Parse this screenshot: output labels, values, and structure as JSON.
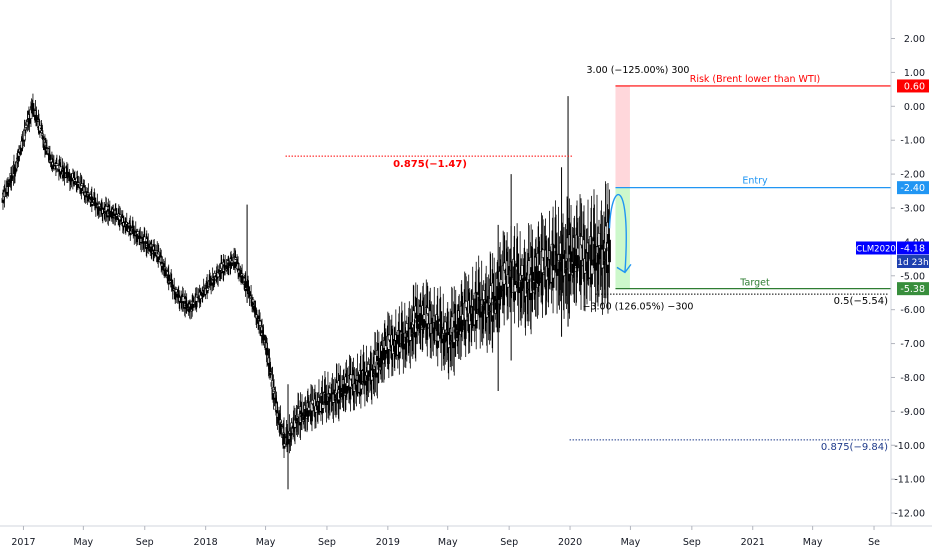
{
  "chart_data": {
    "type": "candlestick",
    "symbol_label": "CLM2020",
    "last_value": "-4.18",
    "countdown": "1d 23h",
    "y_ticks": [
      "2.00",
      "1.00",
      "0.00",
      "-1.00",
      "-2.00",
      "-3.00",
      "-4.00",
      "-5.00",
      "-6.00",
      "-7.00",
      "-8.00",
      "-9.00",
      "-10.00",
      "-11.00",
      "-12.00"
    ],
    "y_tick_values": [
      2,
      1,
      0,
      -1,
      -2,
      -3,
      -4,
      -5,
      -6,
      -7,
      -8,
      -9,
      -10,
      -11,
      -12
    ],
    "ylim": [
      -12.5,
      2.9
    ],
    "x_ticks": [
      "2017",
      "May",
      "Sep",
      "2018",
      "May",
      "Sep",
      "2019",
      "May",
      "Sep",
      "2020",
      "May",
      "Sep",
      "2021",
      "May",
      "Se"
    ],
    "x_tick_dates": [
      "2017-01-01",
      "2017-05-01",
      "2017-09-01",
      "2018-01-01",
      "2018-05-01",
      "2018-09-01",
      "2019-01-01",
      "2019-05-01",
      "2019-09-01",
      "2020-01-01",
      "2020-05-01",
      "2020-09-01",
      "2021-01-01",
      "2021-05-01",
      "2021-09-01"
    ],
    "xlim": [
      "2016-11-15",
      "2021-10-05"
    ],
    "price_anchors": [
      {
        "date": "2016-11-20",
        "value": -2.8
      },
      {
        "date": "2016-12-15",
        "value": -1.8
      },
      {
        "date": "2017-01-10",
        "value": -0.5
      },
      {
        "date": "2017-01-20",
        "value": 0.0
      },
      {
        "date": "2017-02-01",
        "value": -0.6
      },
      {
        "date": "2017-03-01",
        "value": -1.8
      },
      {
        "date": "2017-04-01",
        "value": -2.0
      },
      {
        "date": "2017-05-01",
        "value": -2.5
      },
      {
        "date": "2017-06-01",
        "value": -3.0
      },
      {
        "date": "2017-07-01",
        "value": -3.2
      },
      {
        "date": "2017-08-01",
        "value": -3.6
      },
      {
        "date": "2017-09-01",
        "value": -4.0
      },
      {
        "date": "2017-10-01",
        "value": -4.5
      },
      {
        "date": "2017-11-01",
        "value": -5.5
      },
      {
        "date": "2017-12-01",
        "value": -6.0
      },
      {
        "date": "2018-01-01",
        "value": -5.4
      },
      {
        "date": "2018-02-01",
        "value": -4.8
      },
      {
        "date": "2018-03-01",
        "value": -4.6
      },
      {
        "date": "2018-04-01",
        "value": -5.6
      },
      {
        "date": "2018-05-01",
        "value": -7.0
      },
      {
        "date": "2018-05-20",
        "value": -8.8
      },
      {
        "date": "2018-06-10",
        "value": -10.0
      },
      {
        "date": "2018-07-01",
        "value": -9.2
      },
      {
        "date": "2018-08-01",
        "value": -9.0
      },
      {
        "date": "2018-09-01",
        "value": -8.6
      },
      {
        "date": "2018-10-01",
        "value": -8.4
      },
      {
        "date": "2018-11-01",
        "value": -8.2
      },
      {
        "date": "2018-12-01",
        "value": -7.8
      },
      {
        "date": "2019-01-01",
        "value": -7.2
      },
      {
        "date": "2019-02-01",
        "value": -6.9
      },
      {
        "date": "2019-03-01",
        "value": -6.3
      },
      {
        "date": "2019-04-01",
        "value": -6.5
      },
      {
        "date": "2019-05-01",
        "value": -6.8
      },
      {
        "date": "2019-06-01",
        "value": -6.4
      },
      {
        "date": "2019-07-01",
        "value": -5.9
      },
      {
        "date": "2019-08-01",
        "value": -5.8
      },
      {
        "date": "2019-09-01",
        "value": -5.0
      },
      {
        "date": "2019-10-01",
        "value": -5.2
      },
      {
        "date": "2019-11-01",
        "value": -5.0
      },
      {
        "date": "2019-12-01",
        "value": -4.6
      },
      {
        "date": "2020-01-01",
        "value": -4.5
      },
      {
        "date": "2020-02-01",
        "value": -4.6
      },
      {
        "date": "2020-03-01",
        "value": -4.3
      },
      {
        "date": "2020-03-20",
        "value": -4.18
      }
    ],
    "spikes": [
      {
        "date": "2019-12-28",
        "high": 0.3,
        "low": -6.5
      },
      {
        "date": "2019-12-15",
        "high": -1.8,
        "low": -6.8
      },
      {
        "date": "2019-09-05",
        "high": -2.0,
        "low": -7.5
      },
      {
        "date": "2019-08-10",
        "high": -3.5,
        "low": -8.4
      },
      {
        "date": "2018-06-15",
        "high": -8.2,
        "low": -11.3
      },
      {
        "date": "2018-03-25",
        "high": -2.9,
        "low": -5.8
      }
    ],
    "annotations": {
      "fib_top_label": "0.875(−1.47)",
      "fib_top_value": -1.47,
      "fib_top_start_date": "2018-06-10",
      "fib_mid_label": "0.5(−5.54)",
      "fib_mid_value": -5.54,
      "fib_bottom_label": "0.875(−9.84)",
      "fib_bottom_value": -9.84,
      "fib_bottom_start_date": "2019-12-31",
      "risk_label": "Risk (Brent lower than WTI)",
      "risk_value": 0.6,
      "risk_value_label": "0.60",
      "entry_label": "Entry",
      "entry_value": -2.4,
      "entry_value_label": "-2.40",
      "target_label": "Target",
      "target_value": -5.38,
      "target_value_label": "-5.38",
      "box_start_date": "2020-04-01",
      "box_end_date": "2020-04-30",
      "top_ratio_label": "3.00 (−125.00%) 300",
      "bottom_ratio_label": "−3.00 (126.05%) −300"
    },
    "colors": {
      "candle": "#000000",
      "risk_line": "#ff0000",
      "risk_fill": "#ffcdd2",
      "entry_line": "#2196f3",
      "reward_fill": "#c8f7c5",
      "target_line": "#2e7d32",
      "target_tag": "#388e3c",
      "fib_top": "#ff0000",
      "fib_bottom": "#1e3a8a",
      "symbol_tag": "#0000ff",
      "countdown_tag": "#1e40af"
    }
  }
}
